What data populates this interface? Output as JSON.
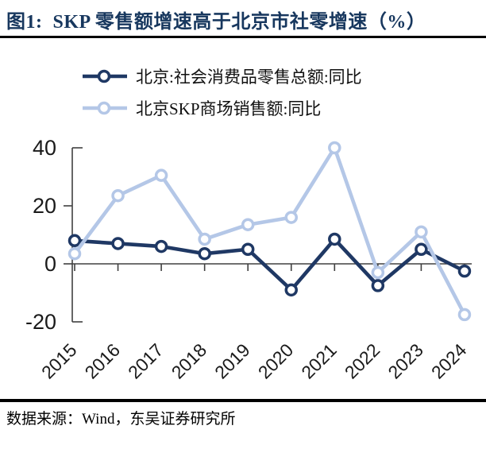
{
  "title": "图1:  SKP 零售额增速高于北京市社零增速（%）",
  "footer": "数据来源：Wind，东吴证券研究所",
  "colors": {
    "title_navy": "#17375e",
    "dark_navy": "#1f3864",
    "light_blue": "#b4c7e7",
    "axis": "#404040",
    "label_text": "#1a1a1a",
    "divider": "#000000",
    "marker_fill": "#ffffff"
  },
  "legend": [
    {
      "label": "北京:社会消费品零售总额:同比",
      "color": "#1f3864"
    },
    {
      "label": "北京SKP商场销售额:同比",
      "color": "#b4c7e7"
    }
  ],
  "chart_data": {
    "type": "line",
    "title": "图1:  SKP 零售额增速高于北京市社零增速（%）",
    "xlabel": "",
    "ylabel": "",
    "categories": [
      "2015",
      "2016",
      "2017",
      "2018",
      "2019",
      "2020",
      "2021",
      "2022",
      "2023",
      "2024"
    ],
    "series": [
      {
        "name": "北京:社会消费品零售总额:同比",
        "color": "#1f3864",
        "values": [
          8,
          7,
          6,
          3.5,
          5,
          -9,
          8.5,
          -7.5,
          5,
          -2.5
        ]
      },
      {
        "name": "北京SKP商场销售额:同比",
        "color": "#b4c7e7",
        "values": [
          3.5,
          23.5,
          30.5,
          8.5,
          13.5,
          16,
          40,
          -3,
          11,
          -17.5
        ]
      }
    ],
    "ylim": [
      -20,
      40
    ],
    "yticks": [
      40,
      20,
      0,
      -20
    ],
    "grid": false,
    "marker": "open-circle",
    "legend_position": "top-left",
    "x_tick_label_rotation": -45
  }
}
